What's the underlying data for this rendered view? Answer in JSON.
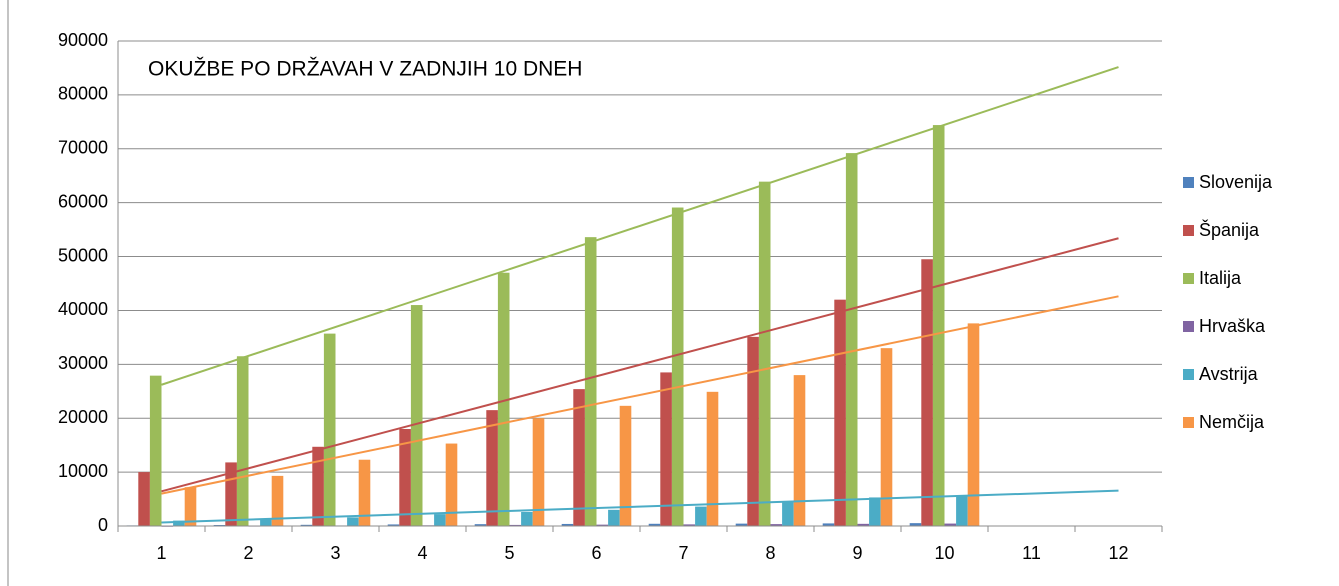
{
  "chart_data": {
    "type": "bar",
    "title": "OKUŽBE PO DRŽAVAH V ZADNJIH 10 DNEH",
    "categories": [
      "1",
      "2",
      "3",
      "4",
      "5",
      "6",
      "7",
      "8",
      "9",
      "10",
      "11",
      "12"
    ],
    "series": [
      {
        "name": "Slovenija",
        "color": "#4f81bd",
        "values": [
          110,
          180,
          220,
          290,
          340,
          380,
          410,
          440,
          480,
          530,
          null,
          null
        ]
      },
      {
        "name": "Španija",
        "color": "#c0504d",
        "trendline": true,
        "values": [
          10000,
          11800,
          14700,
          18000,
          21500,
          25400,
          28500,
          35100,
          42000,
          49500,
          null,
          null
        ]
      },
      {
        "name": "Italija",
        "color": "#9bbb59",
        "trendline": true,
        "values": [
          27900,
          31500,
          35700,
          41000,
          47000,
          53600,
          59100,
          63900,
          69200,
          74400,
          null,
          null
        ]
      },
      {
        "name": "Hrvaška",
        "color": "#8064a2",
        "values": [
          50,
          80,
          100,
          130,
          200,
          250,
          300,
          350,
          400,
          450,
          null,
          null
        ]
      },
      {
        "name": "Avstrija",
        "color": "#4bacc6",
        "trendline": true,
        "values": [
          1000,
          1300,
          1600,
          2200,
          2600,
          3000,
          3600,
          4500,
          5300,
          5600,
          null,
          null
        ]
      },
      {
        "name": "Nemčija",
        "color": "#f79646",
        "trendline": true,
        "values": [
          7200,
          9300,
          12300,
          15300,
          20000,
          22300,
          24900,
          28000,
          33000,
          37600,
          null,
          null
        ]
      }
    ],
    "ylim": [
      0,
      90000
    ],
    "yticks": [
      0,
      10000,
      20000,
      30000,
      40000,
      50000,
      60000,
      70000,
      80000,
      90000
    ],
    "grid": true,
    "legend": "right"
  }
}
